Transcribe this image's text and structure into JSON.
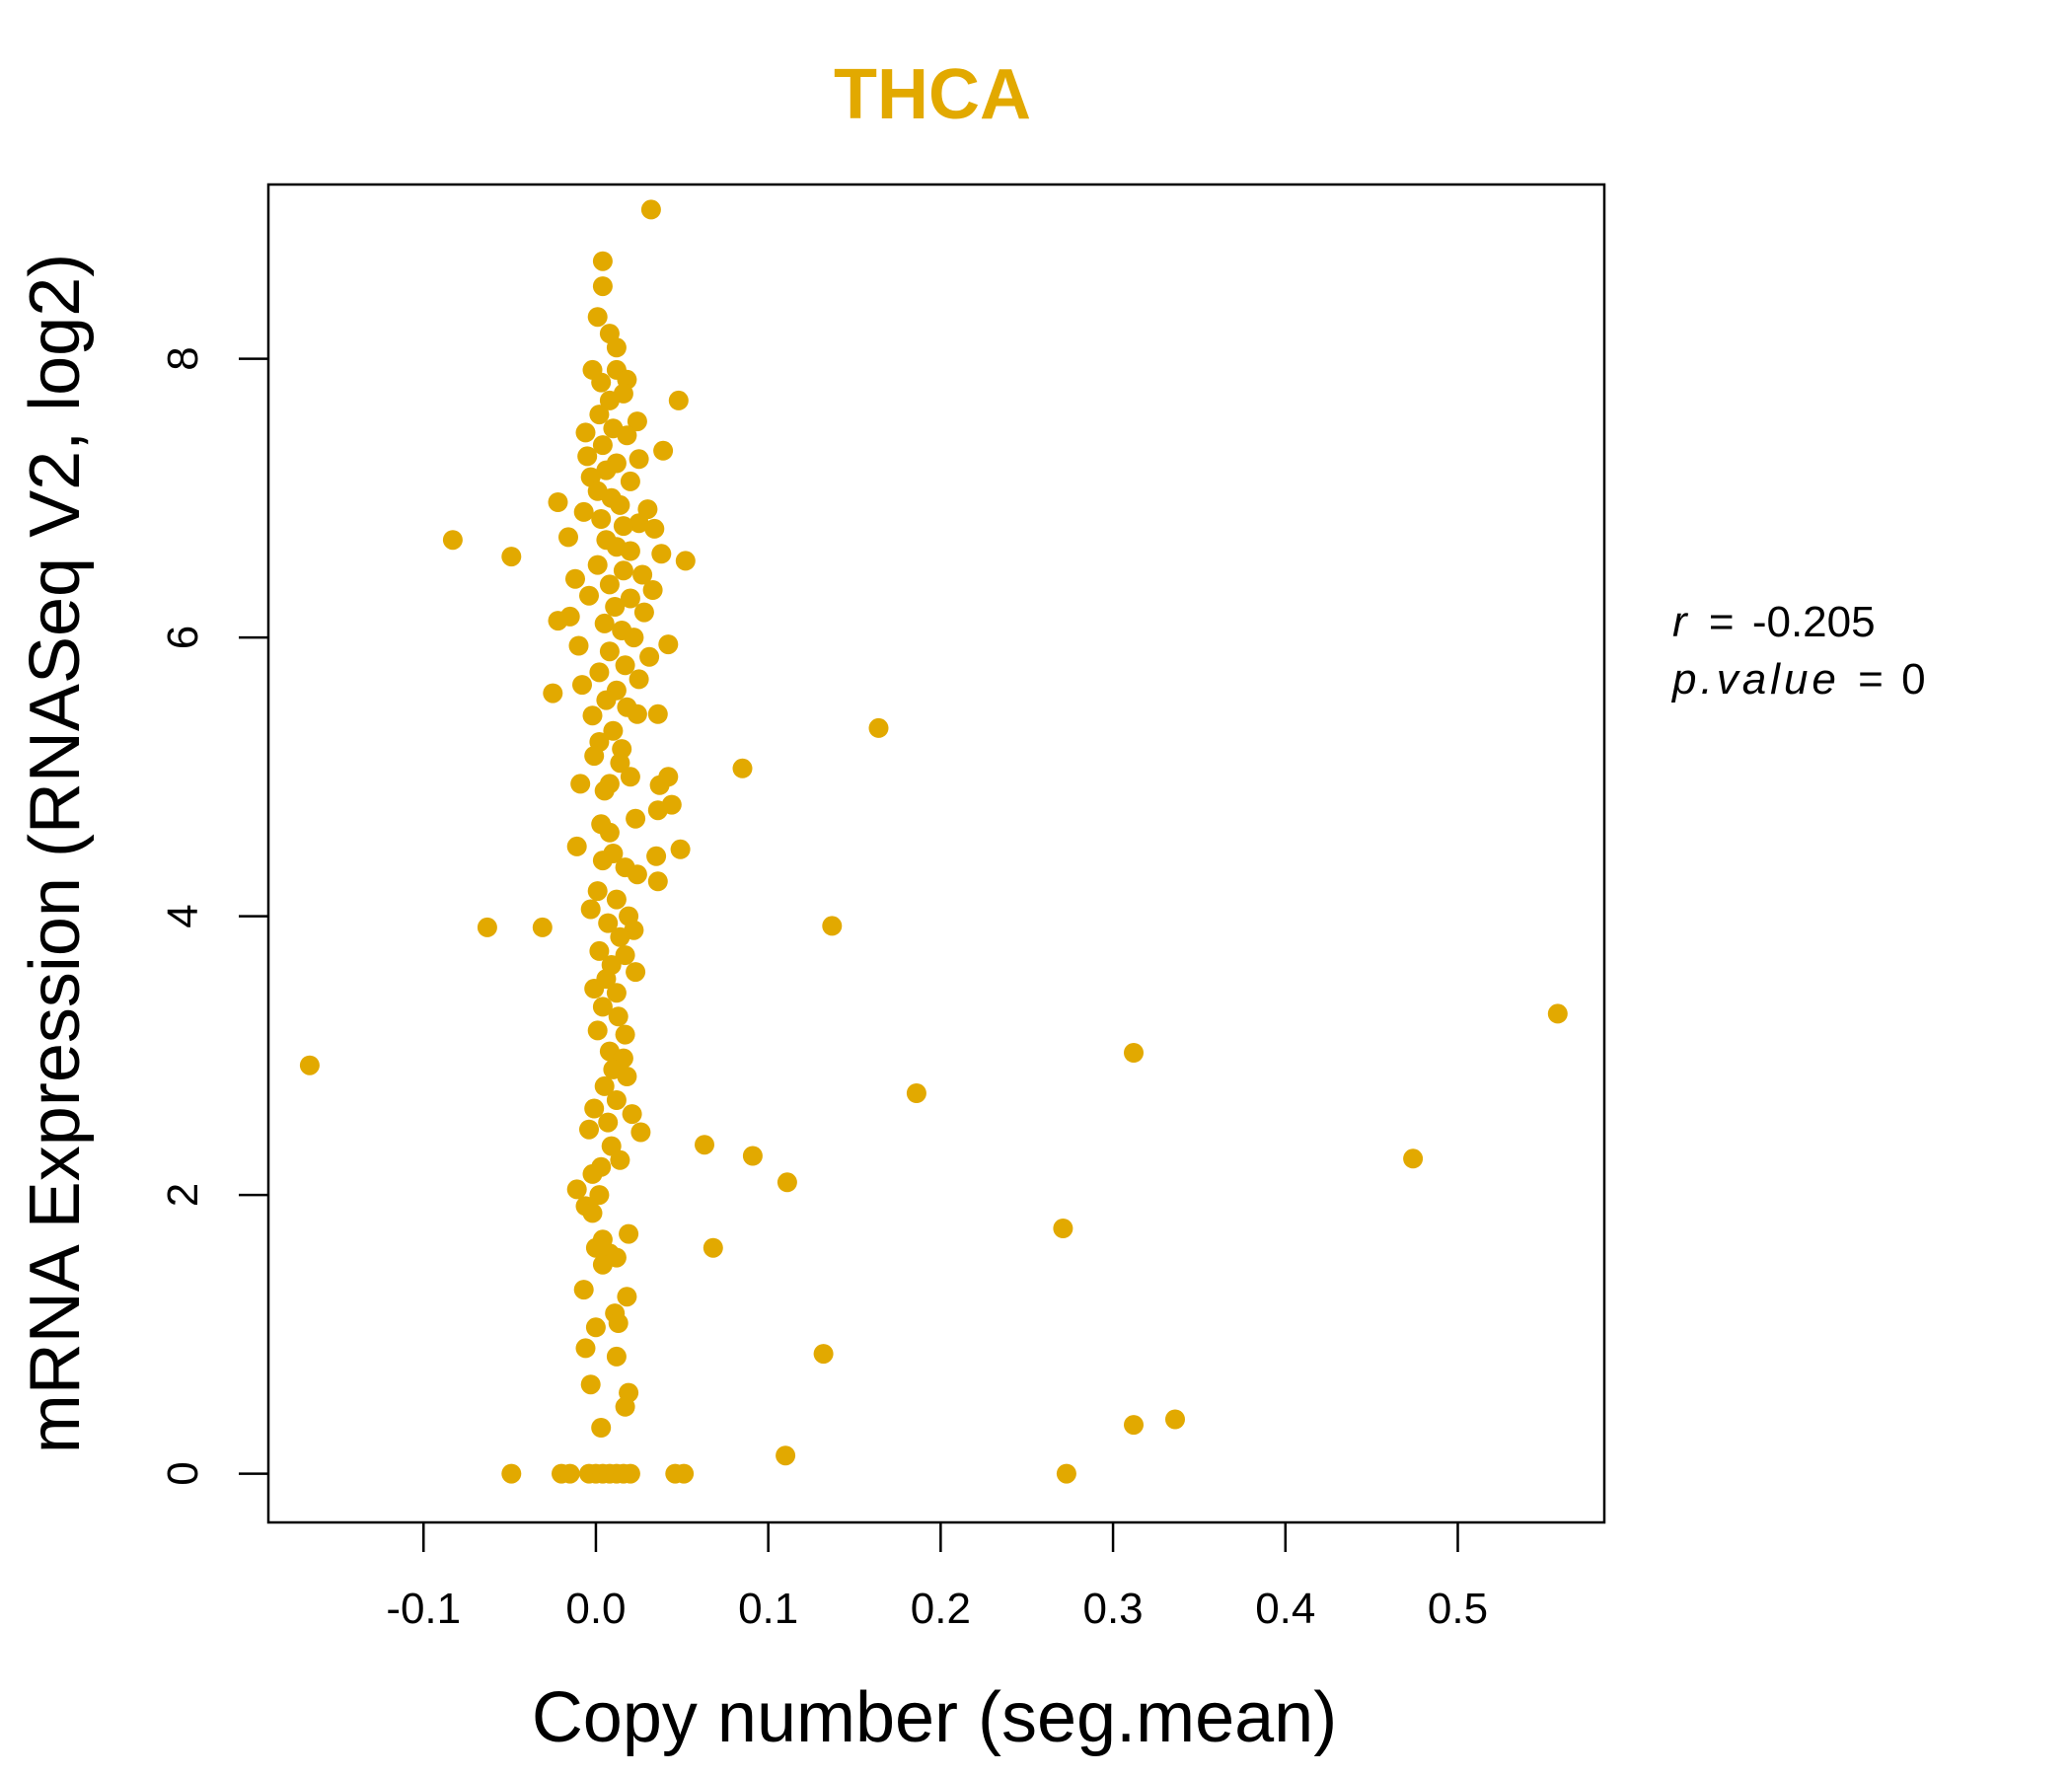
{
  "chart_data": {
    "type": "scatter",
    "title": "THCA",
    "xlabel": "Copy number (seg.mean)",
    "ylabel": "mRNA Expression (RNASeq V2, log2)",
    "xlim": [
      -0.19,
      0.585
    ],
    "ylim": [
      -0.35,
      9.25
    ],
    "xticks": [
      -0.1,
      0.0,
      0.1,
      0.2,
      0.3,
      0.4,
      0.5
    ],
    "xtick_labels": [
      "-0.1",
      "0.0",
      "0.1",
      "0.2",
      "0.3",
      "0.4",
      "0.5"
    ],
    "yticks": [
      0,
      2,
      4,
      6,
      8
    ],
    "ytick_labels": [
      "0",
      "2",
      "4",
      "6",
      "8"
    ],
    "point_color": "#E2A900",
    "annotation": {
      "r_label": "r",
      "r_value": "-0.205",
      "p_label": "p.value",
      "p_value": "0",
      "equals": "="
    },
    "points": [
      [
        0.032,
        9.07
      ],
      [
        0.004,
        8.7
      ],
      [
        0.004,
        8.52
      ],
      [
        0.001,
        8.3
      ],
      [
        0.008,
        8.18
      ],
      [
        0.012,
        8.08
      ],
      [
        0.012,
        7.92
      ],
      [
        -0.002,
        7.92
      ],
      [
        0.018,
        7.85
      ],
      [
        0.003,
        7.83
      ],
      [
        0.048,
        7.7
      ],
      [
        0.016,
        7.75
      ],
      [
        0.008,
        7.7
      ],
      [
        0.002,
        7.6
      ],
      [
        0.024,
        7.55
      ],
      [
        0.01,
        7.5
      ],
      [
        -0.006,
        7.47
      ],
      [
        0.018,
        7.45
      ],
      [
        0.004,
        7.38
      ],
      [
        0.039,
        7.34
      ],
      [
        -0.005,
        7.3
      ],
      [
        0.025,
        7.28
      ],
      [
        0.012,
        7.25
      ],
      [
        0.006,
        7.2
      ],
      [
        -0.003,
        7.15
      ],
      [
        0.02,
        7.12
      ],
      [
        0.001,
        7.05
      ],
      [
        0.009,
        7.0
      ],
      [
        -0.022,
        6.97
      ],
      [
        0.014,
        6.95
      ],
      [
        0.03,
        6.92
      ],
      [
        -0.007,
        6.9
      ],
      [
        0.003,
        6.85
      ],
      [
        0.025,
        6.82
      ],
      [
        0.016,
        6.8
      ],
      [
        0.034,
        6.78
      ],
      [
        -0.016,
        6.72
      ],
      [
        -0.083,
        6.7
      ],
      [
        0.006,
        6.7
      ],
      [
        0.012,
        6.65
      ],
      [
        0.02,
        6.62
      ],
      [
        0.038,
        6.6
      ],
      [
        -0.049,
        6.58
      ],
      [
        0.052,
        6.55
      ],
      [
        0.001,
        6.52
      ],
      [
        0.016,
        6.48
      ],
      [
        0.027,
        6.45
      ],
      [
        -0.012,
        6.42
      ],
      [
        0.008,
        6.38
      ],
      [
        0.033,
        6.34
      ],
      [
        -0.004,
        6.3
      ],
      [
        0.02,
        6.28
      ],
      [
        0.011,
        6.22
      ],
      [
        0.028,
        6.18
      ],
      [
        -0.015,
        6.15
      ],
      [
        -0.022,
        6.12
      ],
      [
        0.005,
        6.1
      ],
      [
        0.015,
        6.05
      ],
      [
        0.022,
        6.0
      ],
      [
        -0.01,
        5.94
      ],
      [
        0.042,
        5.95
      ],
      [
        0.008,
        5.9
      ],
      [
        0.031,
        5.86
      ],
      [
        0.017,
        5.8
      ],
      [
        0.002,
        5.75
      ],
      [
        0.025,
        5.7
      ],
      [
        -0.008,
        5.66
      ],
      [
        0.012,
        5.62
      ],
      [
        -0.025,
        5.6
      ],
      [
        0.006,
        5.55
      ],
      [
        0.018,
        5.5
      ],
      [
        0.036,
        5.45
      ],
      [
        -0.002,
        5.44
      ],
      [
        0.024,
        5.45
      ],
      [
        0.164,
        5.35
      ],
      [
        0.01,
        5.33
      ],
      [
        0.002,
        5.25
      ],
      [
        0.015,
        5.2
      ],
      [
        -0.001,
        5.15
      ],
      [
        0.014,
        5.1
      ],
      [
        0.085,
        5.06
      ],
      [
        0.02,
        5.0
      ],
      [
        0.042,
        5.0
      ],
      [
        0.008,
        4.95
      ],
      [
        -0.009,
        4.95
      ],
      [
        0.037,
        4.94
      ],
      [
        0.005,
        4.9
      ],
      [
        0.044,
        4.8
      ],
      [
        0.036,
        4.76
      ],
      [
        0.023,
        4.7
      ],
      [
        0.003,
        4.66
      ],
      [
        0.008,
        4.6
      ],
      [
        -0.011,
        4.5
      ],
      [
        0.049,
        4.48
      ],
      [
        0.01,
        4.45
      ],
      [
        0.035,
        4.43
      ],
      [
        0.004,
        4.4
      ],
      [
        0.017,
        4.35
      ],
      [
        0.024,
        4.3
      ],
      [
        0.036,
        4.25
      ],
      [
        0.001,
        4.18
      ],
      [
        0.012,
        4.12
      ],
      [
        -0.003,
        4.05
      ],
      [
        0.019,
        4.0
      ],
      [
        0.007,
        3.95
      ],
      [
        0.137,
        3.93
      ],
      [
        -0.063,
        3.92
      ],
      [
        -0.031,
        3.92
      ],
      [
        0.022,
        3.9
      ],
      [
        0.014,
        3.85
      ],
      [
        0.002,
        3.75
      ],
      [
        0.017,
        3.72
      ],
      [
        0.009,
        3.65
      ],
      [
        0.023,
        3.6
      ],
      [
        0.006,
        3.55
      ],
      [
        -0.001,
        3.48
      ],
      [
        0.012,
        3.45
      ],
      [
        0.004,
        3.35
      ],
      [
        0.558,
        3.3
      ],
      [
        0.013,
        3.28
      ],
      [
        0.001,
        3.18
      ],
      [
        0.017,
        3.15
      ],
      [
        0.312,
        3.02
      ],
      [
        0.008,
        3.03
      ],
      [
        0.016,
        2.98
      ],
      [
        -0.166,
        2.93
      ],
      [
        0.01,
        2.9
      ],
      [
        0.018,
        2.85
      ],
      [
        0.005,
        2.78
      ],
      [
        0.186,
        2.73
      ],
      [
        0.012,
        2.68
      ],
      [
        -0.001,
        2.62
      ],
      [
        0.021,
        2.58
      ],
      [
        0.007,
        2.52
      ],
      [
        -0.004,
        2.47
      ],
      [
        0.026,
        2.45
      ],
      [
        0.063,
        2.36
      ],
      [
        0.009,
        2.35
      ],
      [
        0.091,
        2.28
      ],
      [
        0.014,
        2.25
      ],
      [
        0.474,
        2.26
      ],
      [
        0.003,
        2.2
      ],
      [
        -0.002,
        2.15
      ],
      [
        0.111,
        2.09
      ],
      [
        -0.011,
        2.04
      ],
      [
        0.002,
        2.0
      ],
      [
        -0.006,
        1.92
      ],
      [
        -0.002,
        1.87
      ],
      [
        0.271,
        1.76
      ],
      [
        0.019,
        1.72
      ],
      [
        0.004,
        1.68
      ],
      [
        0.068,
        1.62
      ],
      [
        0.0,
        1.62
      ],
      [
        0.008,
        1.58
      ],
      [
        0.012,
        1.55
      ],
      [
        0.004,
        1.5
      ],
      [
        -0.007,
        1.32
      ],
      [
        0.018,
        1.27
      ],
      [
        0.011,
        1.15
      ],
      [
        0.0,
        1.05
      ],
      [
        0.013,
        1.08
      ],
      [
        -0.006,
        0.9
      ],
      [
        0.132,
        0.86
      ],
      [
        0.012,
        0.84
      ],
      [
        -0.003,
        0.64
      ],
      [
        0.019,
        0.58
      ],
      [
        0.017,
        0.48
      ],
      [
        0.336,
        0.39
      ],
      [
        0.312,
        0.35
      ],
      [
        0.003,
        0.33
      ],
      [
        0.11,
        0.13
      ],
      [
        -0.049,
        0.0
      ],
      [
        -0.02,
        0.0
      ],
      [
        -0.015,
        0.0
      ],
      [
        -0.004,
        0.0
      ],
      [
        0.0,
        0.0
      ],
      [
        0.004,
        0.0
      ],
      [
        0.008,
        0.0
      ],
      [
        0.012,
        0.0
      ],
      [
        0.016,
        0.0
      ],
      [
        0.02,
        0.0
      ],
      [
        0.046,
        0.0
      ],
      [
        0.051,
        0.0
      ],
      [
        0.273,
        0.0
      ]
    ]
  }
}
